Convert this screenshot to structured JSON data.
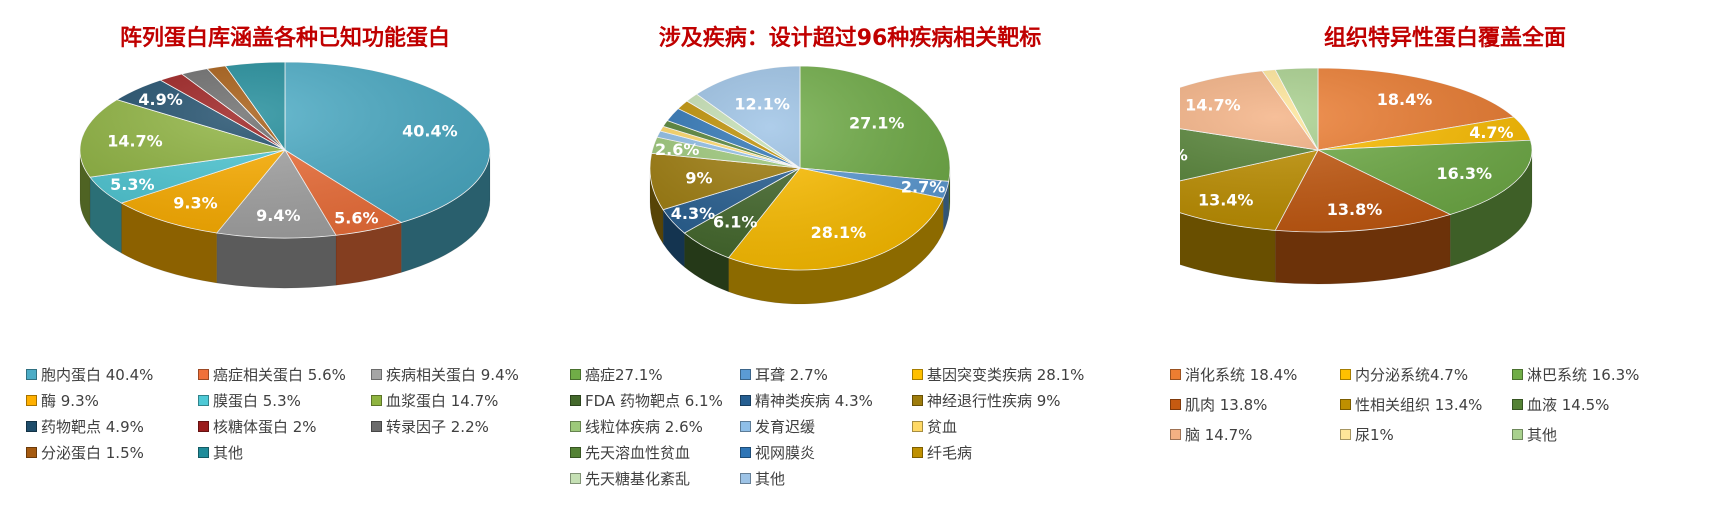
{
  "chart_data": [
    {
      "type": "pie",
      "title": "阵列蛋白库涵盖各种已知功能蛋白",
      "slices": [
        {
          "name": "胞内蛋白 40.4%",
          "value": 40.4,
          "label": "40.4%",
          "color": "#4bacc6"
        },
        {
          "name": "癌症相关蛋白 5.6%",
          "value": 5.6,
          "label": "5.6%",
          "color": "#f0703a"
        },
        {
          "name": "疾病相关蛋白 9.4%",
          "value": 9.4,
          "label": "9.4%",
          "color": "#a5a5a5"
        },
        {
          "name": "酶 9.3%",
          "value": 9.3,
          "label": "9.3%",
          "color": "#ffb000"
        },
        {
          "name": "膜蛋白 5.3%",
          "value": 5.3,
          "label": "5.3%",
          "color": "#4ec9d6"
        },
        {
          "name": "血浆蛋白 14.7%",
          "value": 14.7,
          "label": "14.7%",
          "color": "#8fb440"
        },
        {
          "name": "药物靶点 4.9%",
          "value": 4.9,
          "label": "4.9%",
          "color": "#1e4d6b"
        },
        {
          "name": "核糖体蛋白 2%",
          "value": 2.0,
          "label": "",
          "color": "#9b1c1c"
        },
        {
          "name": "转录因子 2.2%",
          "value": 2.2,
          "label": "",
          "color": "#6b6b6b"
        },
        {
          "name": "分泌蛋白 1.5%",
          "value": 1.5,
          "label": "",
          "color": "#a55a10"
        },
        {
          "name": "其他",
          "value": 4.7,
          "label": "",
          "color": "#1f8c9a"
        }
      ]
    },
    {
      "type": "pie",
      "title": "涉及疾病：设计超过96种疾病相关靶标",
      "slices": [
        {
          "name": "癌症27.1%",
          "value": 27.1,
          "label": "27.1%",
          "color": "#70ad47"
        },
        {
          "name": "耳聋 2.7%",
          "value": 2.7,
          "label": "2.7%",
          "color": "#5b9bd5"
        },
        {
          "name": "基因突变类疾病 28.1%",
          "value": 28.1,
          "label": "28.1%",
          "color": "#ffc000"
        },
        {
          "name": "FDA 药物靶点 6.1%",
          "value": 6.1,
          "label": "6.1%",
          "color": "#43682b"
        },
        {
          "name": "精神类疾病 4.3%",
          "value": 4.3,
          "label": "4.3%",
          "color": "#255e91"
        },
        {
          "name": "神经退行性疾病 9%",
          "value": 9.0,
          "label": "9%",
          "color": "#9e7c0c"
        },
        {
          "name": "线粒体疾病 2.6%",
          "value": 2.6,
          "label": "2.6%",
          "color": "#9dc97a"
        },
        {
          "name": "发育迟缓",
          "value": 1.0,
          "label": "",
          "color": "#8fbfe8"
        },
        {
          "name": "贫血",
          "value": 0.8,
          "label": "",
          "color": "#ffd966"
        },
        {
          "name": "先天溶血性贫血",
          "value": 1.0,
          "label": "",
          "color": "#548235"
        },
        {
          "name": "视网膜炎",
          "value": 2.2,
          "label": "",
          "color": "#2e75b6"
        },
        {
          "name": "纤毛病",
          "value": 1.5,
          "label": "",
          "color": "#bf9000"
        },
        {
          "name": "先天糖基化紊乱",
          "value": 1.5,
          "label": "",
          "color": "#c5e0b4"
        },
        {
          "name": "其他",
          "value": 12.1,
          "label": "12.1%",
          "color": "#9dc3e6"
        }
      ]
    },
    {
      "type": "pie",
      "title": "组织特异性蛋白覆盖全面",
      "slices": [
        {
          "name": "消化系统 18.4%",
          "value": 18.4,
          "label": "18.4%",
          "color": "#ed7d31"
        },
        {
          "name": "内分泌系统4.7%",
          "value": 4.7,
          "label": "4.7%",
          "color": "#ffc000"
        },
        {
          "name": "淋巴系统 16.3%",
          "value": 16.3,
          "label": "16.3%",
          "color": "#70ad47"
        },
        {
          "name": "肌肉 13.8%",
          "value": 13.8,
          "label": "13.8%",
          "color": "#c55a11"
        },
        {
          "name": "性相关组织 13.4%",
          "value": 13.4,
          "label": "13.4%",
          "color": "#bf9000"
        },
        {
          "name": "血液 14.5%",
          "value": 14.5,
          "label": "14.5%",
          "color": "#548235"
        },
        {
          "name": "脑 14.7%",
          "value": 14.7,
          "label": "14.7%",
          "color": "#f4b183"
        },
        {
          "name": "尿1%",
          "value": 1.0,
          "label": "",
          "color": "#ffe699"
        },
        {
          "name": "其他",
          "value": 3.2,
          "label": "",
          "color": "#a9d18e"
        }
      ]
    }
  ]
}
